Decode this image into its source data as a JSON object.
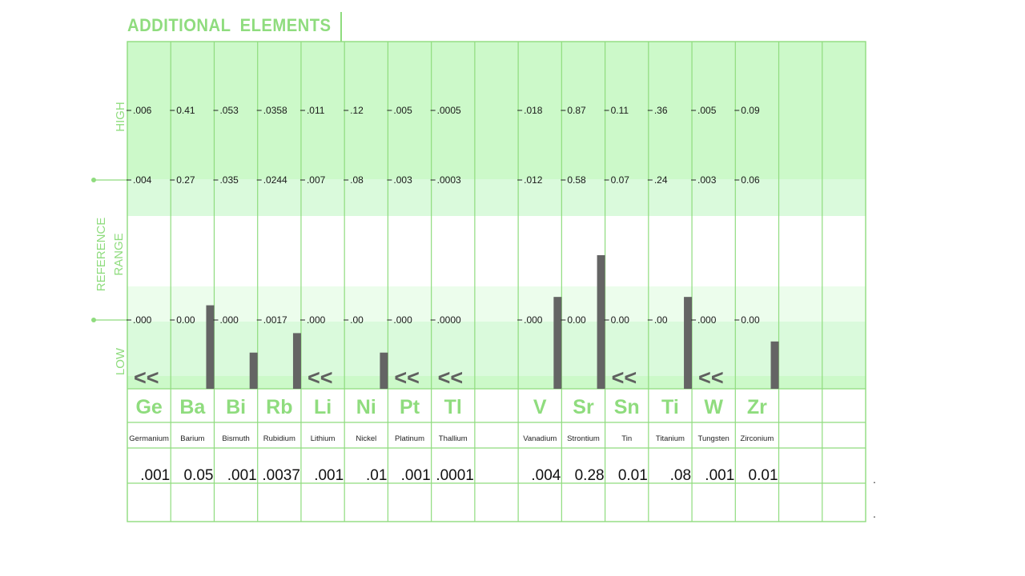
{
  "header": {
    "title": "ADDITIONAL  ELEMENTS"
  },
  "side_labels": {
    "high": "HIGH",
    "reference_1": "REFERENCE",
    "reference_2": "RANGE",
    "low": "LOW"
  },
  "colors": {
    "green": "#8fdc7e",
    "band_dark": "#ccf9c9",
    "band_mid": "#dafadc",
    "band_light": "#ecfdec",
    "bar": "#646464",
    "grid": "#8fdc7e"
  },
  "chart_data": {
    "type": "bar",
    "title": "ADDITIONAL  ELEMENTS",
    "ylabel": "REFERENCE RANGE",
    "scale": "per-column reference range (low to high)",
    "columns": [
      {
        "symbol": "Ge",
        "name": "Germanium",
        "result": ".001",
        "ref_low": ".000",
        "ref_high": ".004",
        "high_mark": ".006",
        "bar_level": null,
        "indicator": "<<"
      },
      {
        "symbol": "Ba",
        "name": "Barium",
        "result": "0.05",
        "ref_low": "0.00",
        "ref_high": "0.27",
        "high_mark": "0.41",
        "bar_level": 0.3,
        "indicator": ""
      },
      {
        "symbol": "Bi",
        "name": "Bismuth",
        "result": ".001",
        "ref_low": ".000",
        "ref_high": ".035",
        "high_mark": ".053",
        "bar_level": 0.13,
        "indicator": ""
      },
      {
        "symbol": "Rb",
        "name": "Rubidium",
        "result": ".0037",
        "ref_low": ".0017",
        "ref_high": ".0244",
        "high_mark": ".0358",
        "bar_level": 0.2,
        "indicator": ""
      },
      {
        "symbol": "Li",
        "name": "Lithium",
        "result": ".001",
        "ref_low": ".000",
        "ref_high": ".007",
        "high_mark": ".011",
        "bar_level": null,
        "indicator": "<<"
      },
      {
        "symbol": "Ni",
        "name": "Nickel",
        "result": ".01",
        "ref_low": ".00",
        "ref_high": ".08",
        "high_mark": ".12",
        "bar_level": 0.13,
        "indicator": ""
      },
      {
        "symbol": "Pt",
        "name": "Platinum",
        "result": ".001",
        "ref_low": ".000",
        "ref_high": ".003",
        "high_mark": ".005",
        "bar_level": null,
        "indicator": "<<"
      },
      {
        "symbol": "Tl",
        "name": "Thallium",
        "result": ".0001",
        "ref_low": ".0000",
        "ref_high": ".0003",
        "high_mark": ".0005",
        "bar_level": null,
        "indicator": "<<"
      },
      {
        "symbol": "",
        "name": "",
        "result": "",
        "ref_low": "",
        "ref_high": "",
        "high_mark": "",
        "bar_level": null,
        "indicator": ""
      },
      {
        "symbol": "V",
        "name": "Vanadium",
        "result": ".004",
        "ref_low": ".000",
        "ref_high": ".012",
        "high_mark": ".018",
        "bar_level": 0.33,
        "indicator": ""
      },
      {
        "symbol": "Sr",
        "name": "Strontium",
        "result": "0.28",
        "ref_low": "0.00",
        "ref_high": "0.58",
        "high_mark": "0.87",
        "bar_level": 0.48,
        "indicator": ""
      },
      {
        "symbol": "Sn",
        "name": "Tin",
        "result": "0.01",
        "ref_low": "0.00",
        "ref_high": "0.07",
        "high_mark": "0.11",
        "bar_level": null,
        "indicator": "<<"
      },
      {
        "symbol": "Ti",
        "name": "Titanium",
        "result": ".08",
        "ref_low": ".00",
        "ref_high": ".24",
        "high_mark": ".36",
        "bar_level": 0.33,
        "indicator": ""
      },
      {
        "symbol": "W",
        "name": "Tungsten",
        "result": ".001",
        "ref_low": ".000",
        "ref_high": ".003",
        "high_mark": ".005",
        "bar_level": null,
        "indicator": "<<"
      },
      {
        "symbol": "Zr",
        "name": "Zirconium",
        "result": "0.01",
        "ref_low": "0.00",
        "ref_high": "0.06",
        "high_mark": "0.09",
        "bar_level": 0.17,
        "indicator": ""
      },
      {
        "symbol": "",
        "name": "",
        "result": "",
        "ref_low": "",
        "ref_high": "",
        "high_mark": "",
        "bar_level": null,
        "indicator": ""
      },
      {
        "symbol": "",
        "name": "",
        "result": "",
        "ref_low": "",
        "ref_high": "",
        "high_mark": "",
        "bar_level": null,
        "indicator": ""
      }
    ]
  },
  "stray_marks": [
    ".",
    "."
  ]
}
